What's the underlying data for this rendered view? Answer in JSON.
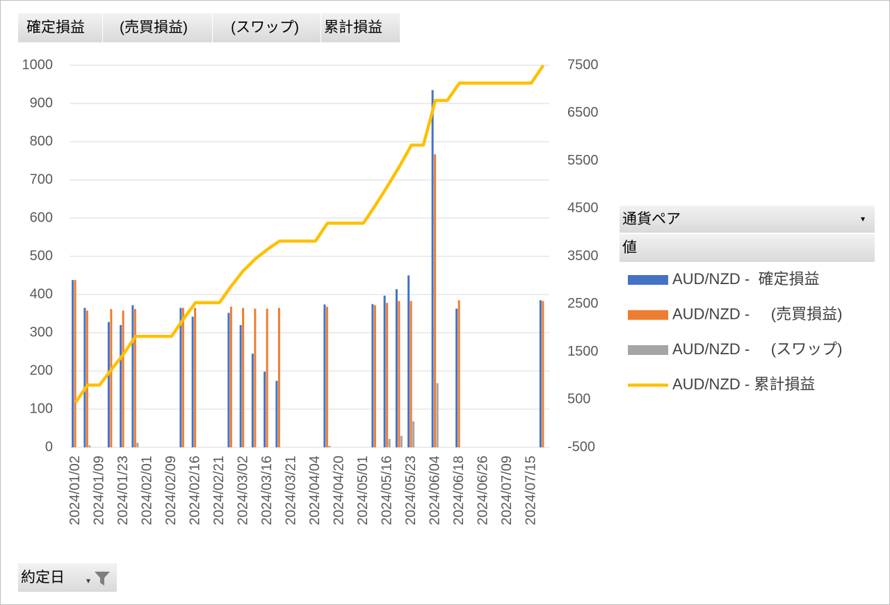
{
  "chart_data": {
    "type": "bar",
    "categories": [
      "2024/01/02",
      null,
      "2024/01/09",
      null,
      "2024/01/23",
      null,
      "2024/02/01",
      null,
      "2024/02/09",
      null,
      "2024/02/16",
      null,
      "2024/02/21",
      null,
      "2024/03/02",
      null,
      "2024/03/16",
      null,
      "2024/03/21",
      null,
      "2024/04/04",
      null,
      "2024/04/20",
      null,
      "2024/05/01",
      null,
      "2024/05/16",
      null,
      "2024/05/23",
      null,
      "2024/06/04",
      null,
      "2024/06/18",
      null,
      "2024/06/26",
      null,
      "2024/07/09",
      null,
      "2024/07/15",
      null
    ],
    "series": [
      {
        "name": "AUD/NZD -  確定損益",
        "color": "#4472c4",
        "values": [
          438,
          365,
          null,
          328,
          320,
          372,
          null,
          null,
          null,
          365,
          342,
          null,
          null,
          352,
          320,
          245,
          198,
          174,
          null,
          null,
          null,
          374,
          null,
          null,
          null,
          375,
          397,
          414,
          450,
          null,
          935,
          null,
          363,
          null,
          null,
          null,
          null,
          null,
          null,
          385
        ]
      },
      {
        "name": "AUD/NZD -     (売買損益)",
        "color": "#ed7d31",
        "values": [
          438,
          358,
          null,
          362,
          358,
          362,
          null,
          null,
          null,
          365,
          365,
          null,
          null,
          368,
          365,
          363,
          363,
          365,
          null,
          null,
          null,
          368,
          null,
          null,
          null,
          372,
          378,
          383,
          383,
          null,
          767,
          null,
          385,
          null,
          null,
          null,
          null,
          null,
          null,
          383
        ]
      },
      {
        "name": "AUD/NZD -     (スワップ)",
        "color": "#a5a5a5",
        "values": [
          0,
          5,
          null,
          0,
          0,
          12,
          null,
          null,
          null,
          0,
          0,
          null,
          null,
          0,
          0,
          0,
          0,
          0,
          null,
          null,
          null,
          4,
          null,
          null,
          null,
          0,
          22,
          30,
          68,
          null,
          168,
          null,
          0,
          null,
          null,
          null,
          null,
          null,
          null,
          0
        ]
      },
      {
        "name": "AUD/NZD - 累計損益",
        "color": "#ffc000",
        "type": "line",
        "axis": "y2",
        "values": [
          438,
          803,
          803,
          1131,
          1451,
          1823,
          1823,
          1823,
          1823,
          2188,
          2530,
          2530,
          2530,
          2882,
          3202,
          3447,
          3645,
          3819,
          3819,
          3819,
          3819,
          4193,
          4193,
          4193,
          4193,
          4568,
          4965,
          5379,
          5829,
          5829,
          6764,
          6764,
          7127,
          7127,
          7127,
          7127,
          7127,
          7127,
          7127,
          7512
        ]
      }
    ],
    "ylim": [
      0,
      1000
    ],
    "yticks": [
      0,
      100,
      200,
      300,
      400,
      500,
      600,
      700,
      800,
      900,
      1000
    ],
    "y2lim": [
      -500,
      7500
    ],
    "y2ticks": [
      -500,
      500,
      1500,
      2500,
      3500,
      4500,
      5500,
      6500,
      7500
    ],
    "grid": true,
    "legend": "right"
  },
  "pivot": {
    "value_fields": [
      "確定損益",
      "(売買損益)",
      "(スワップ)",
      "累計損益"
    ],
    "legend_field": "通貨ペア",
    "values_header": "値",
    "axis_field": "約定日"
  }
}
